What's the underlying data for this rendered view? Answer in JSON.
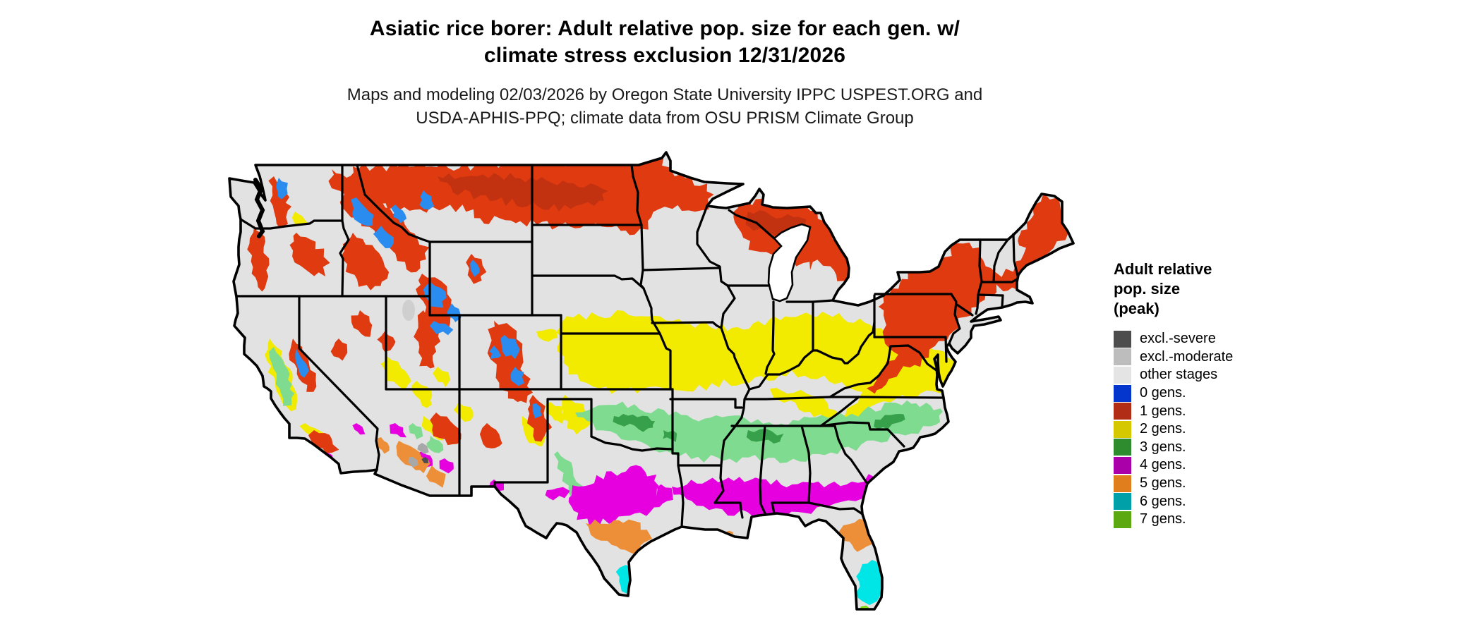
{
  "title": {
    "line1": "Asiatic rice borer: Adult relative pop. size for each gen. w/",
    "line2": "climate stress exclusion 12/31/2026"
  },
  "subtitle": {
    "line1": "Maps and modeling 02/03/2026 by Oregon State University IPPC USPEST.ORG and",
    "line2": "USDA-APHIS-PPQ; climate data from OSU PRISM Climate Group"
  },
  "legend": {
    "title_lines": [
      "Adult relative",
      "pop. size",
      "(peak)"
    ],
    "items": [
      {
        "key": "exclSevere",
        "label": "excl.-severe",
        "color": "#4D4D4D",
        "map_color": "#4D4D4D"
      },
      {
        "key": "exclModerate",
        "label": "excl.-moderate",
        "color": "#BDBDBD",
        "map_color": "#A8A8A8"
      },
      {
        "key": "otherStages",
        "label": "other stages",
        "color": "#E4E4E4",
        "map_color": "#E2E2E2"
      },
      {
        "key": "gens0",
        "label": "0 gens.",
        "color": "#0435CD",
        "map_color": "#2B8CEF"
      },
      {
        "key": "gens1",
        "label": "1 gens.",
        "color": "#B22D16",
        "map_color": "#DF3A10",
        "map_color_dark": "#C23211"
      },
      {
        "key": "gens2",
        "label": "2 gens.",
        "color": "#D5C800",
        "map_color": "#F2EB00"
      },
      {
        "key": "gens3",
        "label": "3 gens.",
        "color": "#2E8B2E",
        "map_color": "#7FDB8F",
        "map_color_dark": "#37A04B"
      },
      {
        "key": "gens4",
        "label": "4 gens.",
        "color": "#AA00AA",
        "map_color": "#E600E0"
      },
      {
        "key": "gens5",
        "label": "5 gens.",
        "color": "#E07D1C",
        "map_color": "#EC8F38"
      },
      {
        "key": "gens6",
        "label": "6 gens.",
        "color": "#00A0A8",
        "map_color": "#00E5E5"
      },
      {
        "key": "gens7",
        "label": "7 gens.",
        "color": "#5CA811",
        "map_color": "#7FD411"
      }
    ]
  },
  "map": {
    "region": "Contiguous United States",
    "border_color": "#000000",
    "background_color": "#ffffff"
  }
}
